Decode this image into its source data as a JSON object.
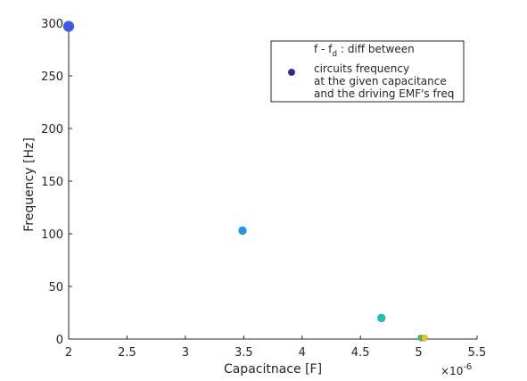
{
  "chart_data": {
    "type": "scatter",
    "xlabel": "Capacitnace [F]",
    "ylabel": "Frequency [Hz]",
    "xlim": [
      2,
      5.5
    ],
    "ylim": [
      0,
      300
    ],
    "x_multiplier": {
      "base": "×10",
      "exponent": "-6"
    },
    "xticks": [
      "2",
      "2.5",
      "3",
      "3.5",
      "4",
      "4.5",
      "5",
      "5.5"
    ],
    "yticks": [
      "0",
      "50",
      "100",
      "150",
      "200",
      "250",
      "300"
    ],
    "grid": false,
    "legend_placement": "top-right",
    "legend": {
      "line1_prefix": "f - f",
      "line1_subscript": "d",
      "line1_suffix": " : diff between",
      "line2": "circuits frequency",
      "line3": "at the given capacitance",
      "line4": "and the driving EMF's freq",
      "marker_color": "#2b2f8f"
    },
    "series": [
      {
        "points": [
          {
            "x": 2.0,
            "y": 297,
            "color": "#3f5ae8",
            "size": "large"
          },
          {
            "x": 3.49,
            "y": 103,
            "color": "#2196e6",
            "size": "medium"
          },
          {
            "x": 4.68,
            "y": 20,
            "color": "#1fbfb8",
            "size": "medium"
          },
          {
            "x": 5.02,
            "y": 1,
            "color": "#4cc25c",
            "size": "small"
          },
          {
            "x": 5.05,
            "y": 1,
            "color": "#f2c21b",
            "size": "small"
          }
        ]
      }
    ]
  }
}
